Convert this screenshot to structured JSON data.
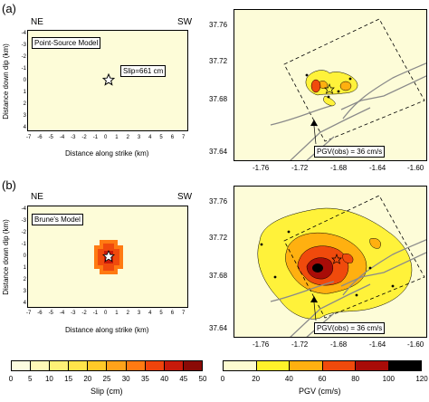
{
  "panel_a": {
    "letter": "(a)",
    "ne": "NE",
    "sw": "SW",
    "model": "Point-Source Model",
    "slip_label": "Slip=661 cm",
    "pgv_label": "PGV(obs) = 36 cm/s"
  },
  "panel_b": {
    "letter": "(b)",
    "ne": "NE",
    "sw": "SW",
    "model": "Brune's Model",
    "pgv_label": "PGV(obs) = 36 cm/s"
  },
  "axes": {
    "dip_label": "Distance down dip (km)",
    "strike_label": "Distance along strike (km)",
    "dip_ticks": [
      "-4",
      "-3",
      "-2",
      "-1",
      "0",
      "1",
      "2",
      "3",
      "4"
    ],
    "strike_ticks": [
      "-7",
      "-6",
      "-5",
      "-4",
      "-3",
      "-2",
      "-1",
      "0",
      "1",
      "2",
      "3",
      "4",
      "5",
      "6",
      "7"
    ],
    "lat_ticks": [
      "37.76",
      "37.72",
      "37.68",
      "37.64"
    ],
    "lon_ticks": [
      "-1.76",
      "-1.72",
      "-1.68",
      "-1.64",
      "-1.60"
    ]
  },
  "slip_colorbar": {
    "title": "Slip (cm)",
    "ticks": [
      "0",
      "5",
      "10",
      "15",
      "20",
      "25",
      "30",
      "35",
      "40",
      "45",
      "50"
    ],
    "colors": [
      "#fdfce0",
      "#fff9b8",
      "#fff176",
      "#ffe44a",
      "#ffc928",
      "#ffa21a",
      "#ff7a12",
      "#f0440c",
      "#c81a0a",
      "#8a0a06"
    ]
  },
  "pgv_colorbar": {
    "title": "PGV (cm/s)",
    "ticks": [
      "0",
      "20",
      "40",
      "60",
      "80",
      "100",
      "120"
    ],
    "colors": [
      "#fdfbd0",
      "#fff22a",
      "#ffb010",
      "#f04a0c",
      "#a80c08",
      "#000000"
    ]
  },
  "colors": {
    "bg": "#fdfcd8"
  }
}
